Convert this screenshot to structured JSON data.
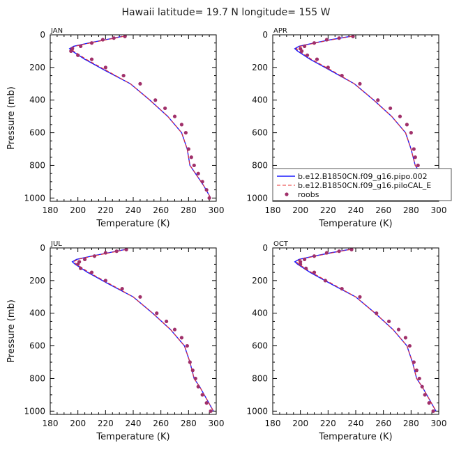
{
  "title": "Hawaii  latitude= 19.7 N longitude= 155 W",
  "colors": {
    "model1": "#1a1aff",
    "model2": "#e83030",
    "roobs": "#a0306a"
  },
  "chart_data": {
    "type": "line",
    "xlabel": "Temperature (K)",
    "ylabel": "Pressure (mb)",
    "xlim": [
      180,
      300
    ],
    "ylim": [
      1020,
      0
    ],
    "xticks": [
      "180",
      "200",
      "220",
      "240",
      "260",
      "280",
      "300"
    ],
    "yticks": [
      "0",
      "200",
      "400",
      "600",
      "800",
      "1000"
    ],
    "legend": {
      "panel": "APR",
      "placement": "bottom-right",
      "entries": [
        {
          "label": "b.e12.B1850CN.f09_g16.pipo.002",
          "style": "line"
        },
        {
          "label": "b.e12.B1850CN.f09_g16.piloCAL_E",
          "style": "dash"
        },
        {
          "label": "roobs",
          "style": "dot"
        }
      ]
    },
    "panels": [
      {
        "label": "JAN",
        "series": [
          {
            "name": "b.e12.B1850CN.f09_g16.pipo.002",
            "style": "line",
            "x": [
              232,
              220,
              208,
              197,
              194,
              196,
              205,
              220,
              238,
              252,
              265,
              275,
              279,
              281,
              285,
              291,
              296
            ],
            "y": [
              10,
              30,
              50,
              70,
              85,
              100,
              150,
              220,
              300,
              400,
              500,
              600,
              700,
              800,
              850,
              925,
              1000
            ]
          },
          {
            "name": "b.e12.B1850CN.f09_g16.piloCAL_E",
            "style": "dash",
            "x": [
              233,
              221,
              209,
              198,
              195,
              197,
              206,
              221,
              238,
              252,
              265,
              275,
              279,
              281,
              285,
              291,
              296
            ],
            "y": [
              10,
              30,
              50,
              70,
              85,
              100,
              150,
              220,
              300,
              400,
              500,
              600,
              700,
              800,
              850,
              925,
              1000
            ]
          },
          {
            "name": "roobs",
            "style": "dot",
            "x": [
              234,
              226,
              218,
              210,
              202,
              196,
              195,
              200,
              210,
              220,
              233,
              245,
              256,
              263,
              270,
              275,
              278,
              280,
              282,
              284,
              287,
              290,
              293,
              295
            ],
            "y": [
              10,
              20,
              30,
              50,
              70,
              85,
              100,
              125,
              150,
              200,
              250,
              300,
              400,
              450,
              500,
              550,
              600,
              700,
              750,
              800,
              850,
              900,
              950,
              1000
            ]
          }
        ]
      },
      {
        "label": "APR",
        "series": [
          {
            "name": "b.e12.B1850CN.f09_g16.pipo.002",
            "style": "line",
            "x": [
              236,
              222,
              210,
              199,
              196,
              198,
              207,
              222,
              239,
              253,
              266,
              276,
              280,
              283,
              287,
              292,
              297
            ],
            "y": [
              10,
              30,
              50,
              70,
              85,
              100,
              150,
              220,
              300,
              400,
              500,
              600,
              700,
              800,
              850,
              925,
              1000
            ]
          },
          {
            "name": "b.e12.B1850CN.f09_g16.piloCAL_E",
            "style": "dash",
            "x": [
              237,
              223,
              211,
              200,
              197,
              199,
              208,
              223,
              239,
              253,
              266,
              276,
              280,
              283,
              287,
              292,
              297
            ],
            "y": [
              10,
              30,
              50,
              70,
              85,
              100,
              150,
              220,
              300,
              400,
              500,
              600,
              700,
              800,
              850,
              925,
              1000
            ]
          },
          {
            "name": "roobs",
            "style": "dot",
            "x": [
              238,
              228,
              219,
              210,
              203,
              200,
              201,
              205,
              212,
              220,
              230,
              243,
              256,
              265,
              272,
              277,
              280,
              282,
              283,
              285,
              288,
              291,
              293,
              295
            ],
            "y": [
              10,
              20,
              30,
              50,
              70,
              85,
              100,
              125,
              150,
              200,
              250,
              300,
              400,
              450,
              500,
              550,
              600,
              700,
              750,
              800,
              850,
              900,
              950,
              1000
            ]
          }
        ]
      },
      {
        "label": "JUL",
        "series": [
          {
            "name": "b.e12.B1850CN.f09_g16.pipo.002",
            "style": "line",
            "x": [
              234,
              222,
              210,
              199,
              196,
              198,
              207,
              222,
              240,
              254,
              267,
              277,
              281,
              284,
              288,
              293,
              298
            ],
            "y": [
              10,
              30,
              50,
              70,
              85,
              100,
              150,
              220,
              300,
              400,
              500,
              600,
              700,
              800,
              850,
              925,
              1000
            ]
          },
          {
            "name": "b.e12.B1850CN.f09_g16.piloCAL_E",
            "style": "dash",
            "x": [
              235,
              223,
              211,
              200,
              197,
              199,
              208,
              223,
              240,
              254,
              267,
              277,
              281,
              284,
              288,
              293,
              298
            ],
            "y": [
              10,
              30,
              50,
              70,
              85,
              100,
              150,
              220,
              300,
              400,
              500,
              600,
              700,
              800,
              850,
              925,
              1000
            ]
          },
          {
            "name": "roobs",
            "style": "dot",
            "x": [
              235,
              228,
              220,
              212,
              205,
              201,
              200,
              202,
              210,
              220,
              232,
              245,
              257,
              264,
              270,
              275,
              279,
              281,
              283,
              285,
              287,
              290,
              293,
              296
            ],
            "y": [
              10,
              20,
              30,
              50,
              70,
              85,
              100,
              125,
              150,
              200,
              250,
              300,
              400,
              450,
              500,
              550,
              600,
              700,
              750,
              800,
              850,
              900,
              950,
              1000
            ]
          }
        ]
      },
      {
        "label": "OCT",
        "series": [
          {
            "name": "b.e12.B1850CN.f09_g16.pipo.002",
            "style": "line",
            "x": [
              235,
              222,
              210,
              199,
              196,
              198,
              207,
              222,
              240,
              254,
              267,
              277,
              281,
              284,
              288,
              293,
              298
            ],
            "y": [
              10,
              30,
              50,
              70,
              85,
              100,
              150,
              220,
              300,
              400,
              500,
              600,
              700,
              800,
              850,
              925,
              1000
            ]
          },
          {
            "name": "b.e12.B1850CN.f09_g16.piloCAL_E",
            "style": "dash",
            "x": [
              236,
              223,
              211,
              200,
              197,
              199,
              208,
              223,
              240,
              254,
              267,
              277,
              281,
              284,
              288,
              293,
              298
            ],
            "y": [
              10,
              30,
              50,
              70,
              85,
              100,
              150,
              220,
              300,
              400,
              500,
              600,
              700,
              800,
              850,
              925,
              1000
            ]
          },
          {
            "name": "roobs",
            "style": "dot",
            "x": [
              237,
              228,
              219,
              210,
              203,
              200,
              200,
              204,
              210,
              218,
              230,
              243,
              255,
              264,
              271,
              276,
              279,
              282,
              284,
              286,
              288,
              290,
              293,
              296
            ],
            "y": [
              10,
              20,
              30,
              50,
              70,
              85,
              100,
              125,
              150,
              200,
              250,
              300,
              400,
              450,
              500,
              550,
              600,
              700,
              750,
              800,
              850,
              900,
              950,
              1000
            ]
          }
        ]
      }
    ]
  }
}
